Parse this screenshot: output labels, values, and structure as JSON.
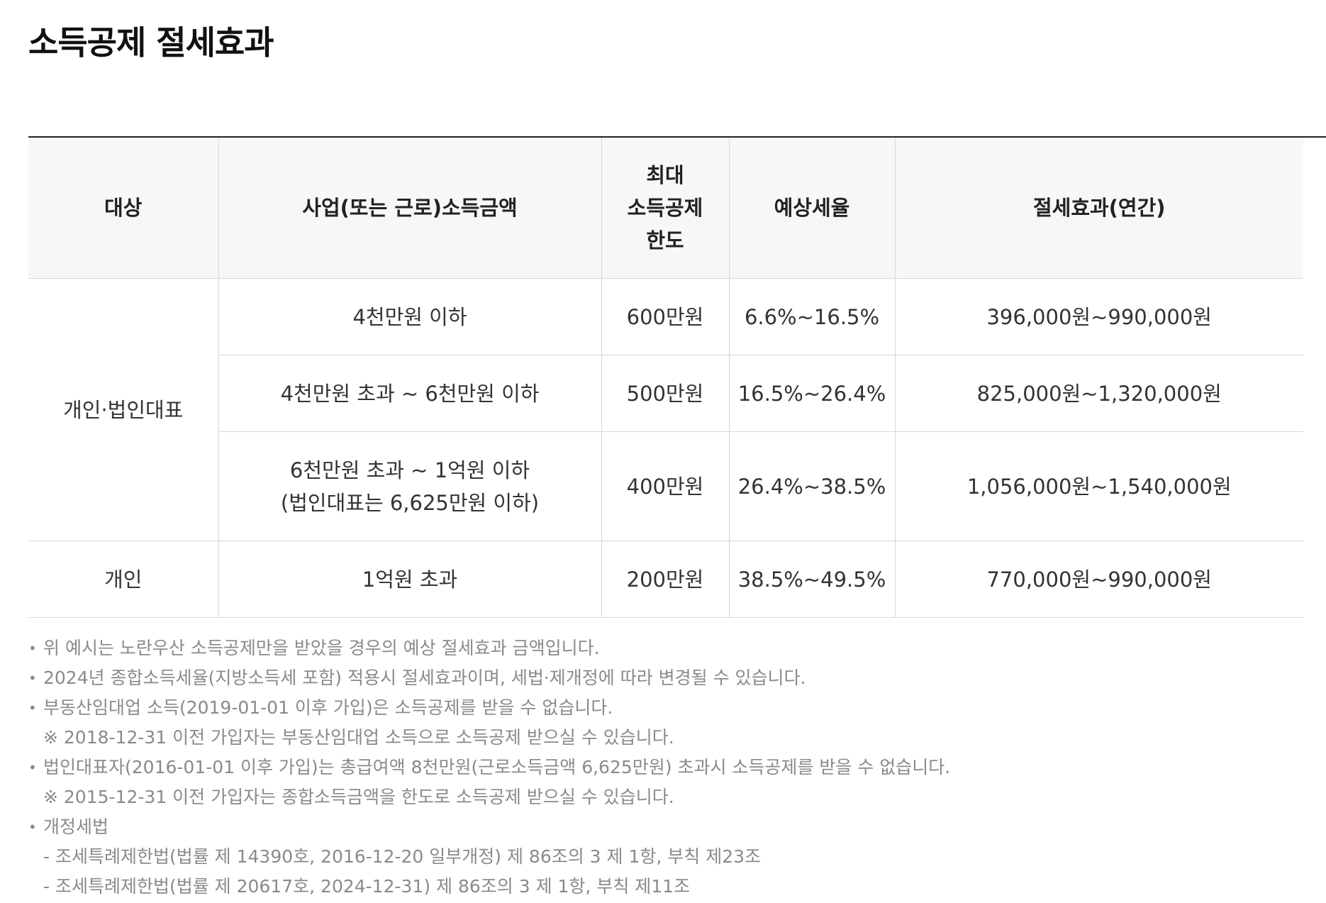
{
  "page": {
    "title": "소득공제 절세효과"
  },
  "table": {
    "headers": {
      "target": "대상",
      "income": "사업(또는 근로)소득금액",
      "limit_line1": "최대",
      "limit_line2": "소득공제",
      "limit_line3": "한도",
      "rate": "예상세율",
      "effect": "절세효과(연간)"
    },
    "groups": {
      "individual_ceo": "개인·법인대표",
      "individual": "개인"
    },
    "rows": [
      {
        "income": "4천만원 이하",
        "limit": "600만원",
        "rate": "6.6%~16.5%",
        "effect": "396,000원~990,000원"
      },
      {
        "income": "4천만원 초과 ~ 6천만원 이하",
        "limit": "500만원",
        "rate": "16.5%~26.4%",
        "effect": "825,000원~1,320,000원"
      },
      {
        "income_line1": "6천만원 초과 ~ 1억원 이하",
        "income_line2": "(법인대표는 6,625만원 이하)",
        "limit": "400만원",
        "rate": "26.4%~38.5%",
        "effect": "1,056,000원~1,540,000원"
      },
      {
        "income": "1억원 초과",
        "limit": "200만원",
        "rate": "38.5%~49.5%",
        "effect": "770,000원~990,000원"
      }
    ]
  },
  "notes": {
    "bullet": "•",
    "n1": "위 예시는 노란우산 소득공제만을 받았을 경우의 예상 절세효과 금액입니다.",
    "n2": "2024년 종합소득세율(지방소득세 포함) 적용시 절세효과이며, 세법·제개정에 따라 변경될 수 있습니다.",
    "n3": "부동산임대업 소득(2019-01-01 이후 가입)은 소득공제를 받을 수 없습니다.",
    "n3_sub": "※ 2018-12-31 이전 가입자는 부동산임대업 소득으로 소득공제 받으실 수 있습니다.",
    "n4": "법인대표자(2016-01-01 이후 가입)는 총급여액 8천만원(근로소득금액 6,625만원) 초과시 소득공제를 받을 수 없습니다.",
    "n4_sub": "※ 2015-12-31 이전 가입자는 종합소득금액을 한도로 소득공제 받으실 수 있습니다.",
    "n5": "개정세법",
    "n5_sub1": "- 조세특례제한법(법률 제 14390호, 2016-12-20 일부개정) 제 86조의 3 제 1항, 부칙 제23조",
    "n5_sub2": "- 조세특례제한법(법률 제 20617호, 2024-12-31) 제 86조의 3 제 1항, 부칙 제11조"
  }
}
